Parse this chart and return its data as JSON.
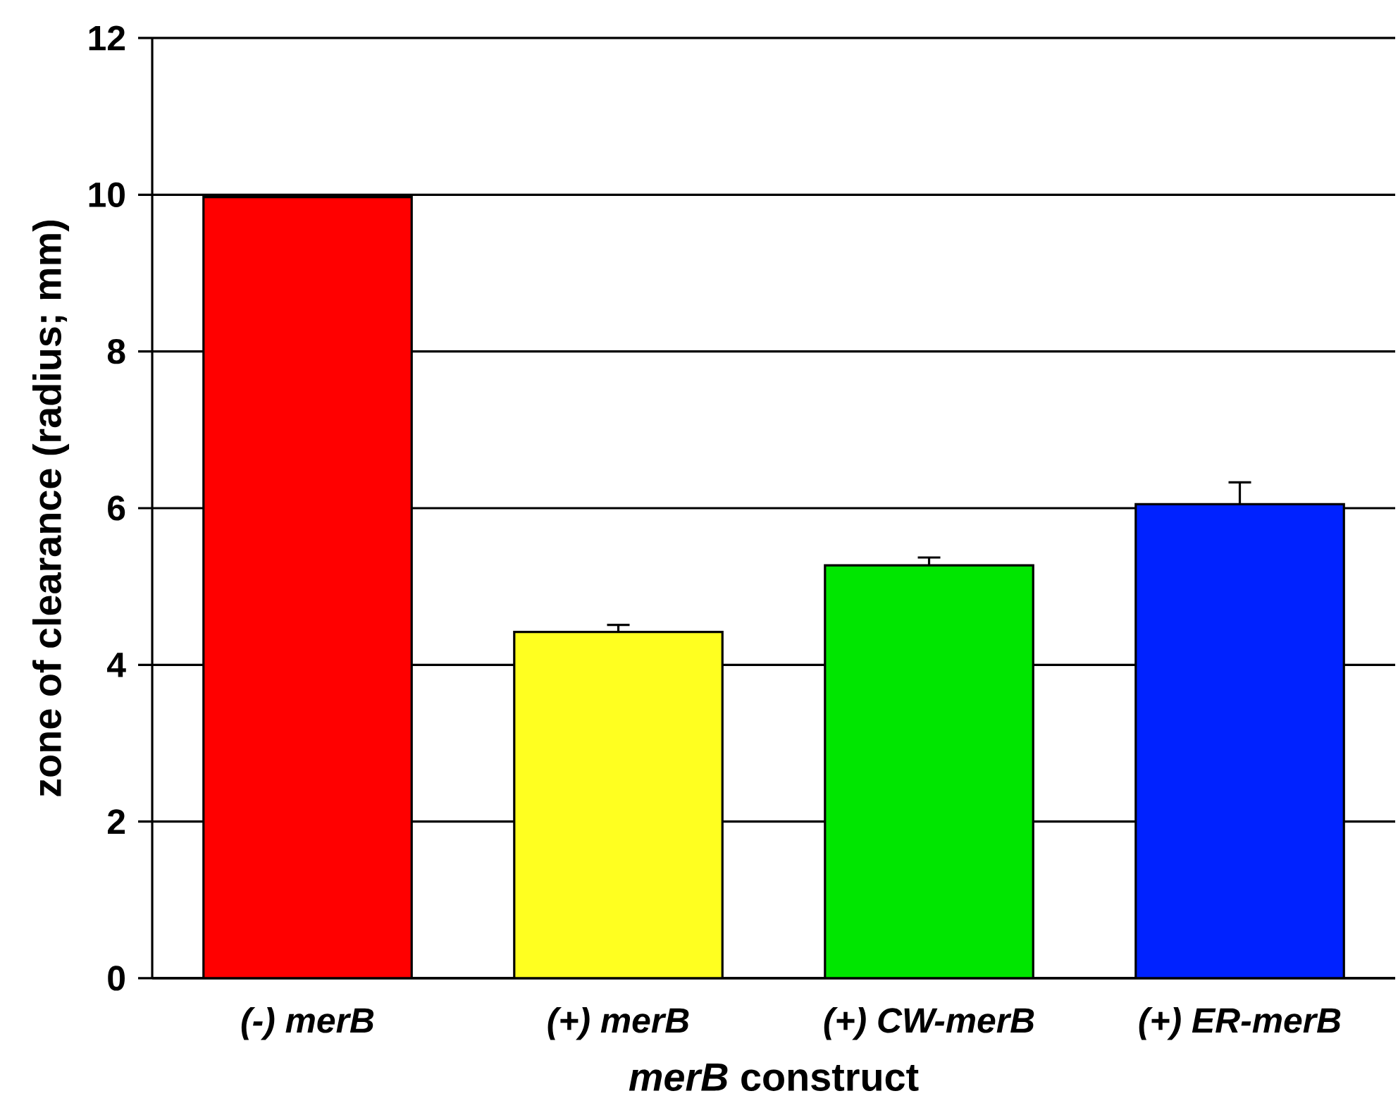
{
  "chart_data": {
    "type": "bar",
    "categories": [
      "(-) merB",
      "(+) merB",
      "(+) CW-merB",
      "(+) ER-merB"
    ],
    "values": [
      9.97,
      4.42,
      5.27,
      6.05
    ],
    "colors": [
      "#ff0000",
      "#ffff20",
      "#00e600",
      "#0022ff"
    ],
    "errors": [
      null,
      0.09,
      0.1,
      0.28
    ],
    "xlabel": "*merB* construct",
    "ylabel": "zone of clearance (radius; mm)",
    "ylim": [
      0,
      12
    ],
    "yticks": [
      0,
      2,
      4,
      6,
      8,
      10,
      12
    ],
    "grid": "y"
  }
}
